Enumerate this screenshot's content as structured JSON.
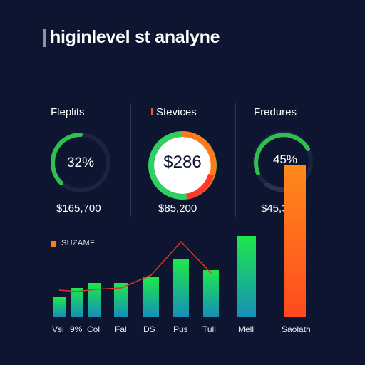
{
  "header": {
    "title": "higinlevel st analyne"
  },
  "cards": [
    {
      "label": "Fleplits",
      "gauge_text": "32%",
      "value": "$165,700",
      "ring_color": "#2fbf4e"
    },
    {
      "label": "Stevices",
      "gauge_text": "$286",
      "value": "$85,200",
      "ring_colors": [
        "#ff7a1a",
        "#ff3a2a",
        "#2ed060"
      ]
    },
    {
      "label": "Fredures",
      "gauge_text": "45%",
      "value": "$45,300",
      "ring_color": "#2fbf4e",
      "accent_bar_color": "#ff8a1a"
    }
  ],
  "chart_data": {
    "type": "bar",
    "legend": "SUZAMF",
    "categories": [
      "Vsl",
      "9%",
      "Col",
      "Fal",
      "DS",
      "Pus",
      "Tull",
      "Mell",
      "Saolath"
    ],
    "series": [
      {
        "values": [
          27,
          40,
          47,
          47,
          55,
          80,
          65,
          113,
          212
        ]
      }
    ],
    "line": [
      37,
      35,
      38,
      40,
      58,
      105,
      61
    ],
    "colors": {
      "bar_top": "#1ee84a",
      "bar_bottom": "#1590b8",
      "line": "#e0342a",
      "last_bar_top": "#ff8a1a",
      "last_bar_bottom": "#ff4a1f"
    }
  }
}
